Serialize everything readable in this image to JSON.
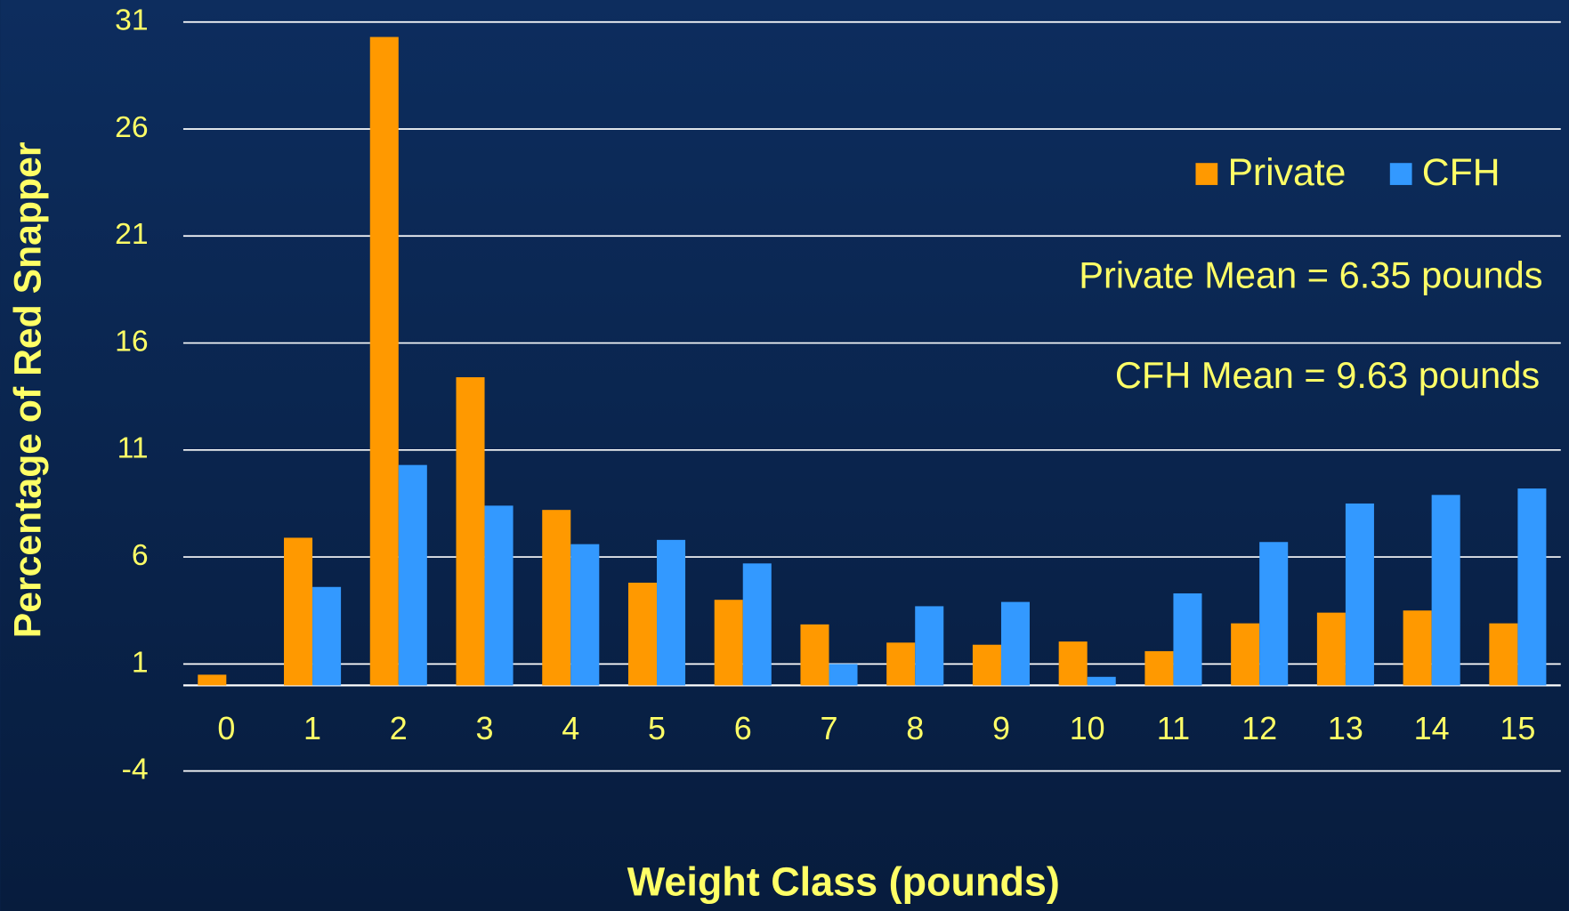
{
  "chart_data": {
    "type": "bar",
    "y_label": "Percentage of Red Snapper",
    "x_label": "Weight Class (pounds)",
    "categories": [
      "0",
      "1",
      "2",
      "3",
      "4",
      "5",
      "6",
      "7",
      "8",
      "9",
      "10",
      "11",
      "12",
      "13",
      "14",
      "15"
    ],
    "series": [
      {
        "name": "Private",
        "color": "#ff9900",
        "values": [
          0.5,
          6.9,
          30.3,
          14.4,
          8.2,
          4.8,
          4.0,
          2.85,
          2.0,
          1.9,
          2.05,
          1.6,
          2.9,
          3.4,
          3.5,
          2.9
        ]
      },
      {
        "name": "CFH",
        "color": "#3399ff",
        "values": [
          0,
          4.6,
          10.3,
          8.4,
          6.6,
          6.8,
          5.7,
          1.0,
          3.7,
          3.9,
          0.4,
          4.3,
          6.7,
          8.5,
          8.9,
          9.2
        ]
      }
    ],
    "annotations": [
      "Private Mean = 6.35 pounds",
      "CFH Mean = 9.63 pounds"
    ],
    "ylim": [
      -4,
      31
    ],
    "yticks": [
      -4,
      1,
      6,
      11,
      16,
      21,
      26,
      31
    ],
    "grid": true,
    "legend": "upper right"
  }
}
